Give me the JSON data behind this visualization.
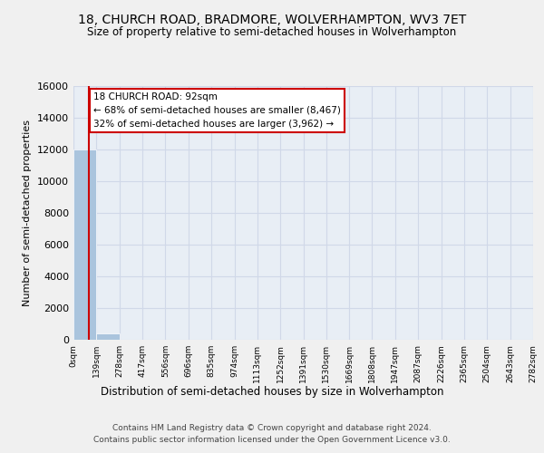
{
  "title_line1": "18, CHURCH ROAD, BRADMORE, WOLVERHAMPTON, WV3 7ET",
  "title_line2": "Size of property relative to semi-detached houses in Wolverhampton",
  "xlabel": "Distribution of semi-detached houses by size in Wolverhampton",
  "ylabel": "Number of semi-detached properties",
  "bin_edges": [
    0,
    139,
    278,
    417,
    556,
    696,
    835,
    974,
    1113,
    1252,
    1391,
    1530,
    1669,
    1808,
    1947,
    2087,
    2226,
    2365,
    2504,
    2643,
    2782
  ],
  "bar_heights": [
    12000,
    420,
    8,
    3,
    2,
    1,
    1,
    1,
    1,
    0,
    0,
    1,
    0,
    0,
    0,
    0,
    0,
    0,
    0,
    2
  ],
  "bar_color": "#aac4dd",
  "bar_edge_color": "white",
  "property_size": 92,
  "annotation_title": "18 CHURCH ROAD: 92sqm",
  "annotation_line1": "← 68% of semi-detached houses are smaller (8,467)",
  "annotation_line2": "32% of semi-detached houses are larger (3,962) →",
  "annotation_box_color": "#ffffff",
  "annotation_box_edge_color": "#cc0000",
  "property_line_color": "#cc0000",
  "ylim": [
    0,
    16000
  ],
  "yticks": [
    0,
    2000,
    4000,
    6000,
    8000,
    10000,
    12000,
    14000,
    16000
  ],
  "grid_color": "#d0d8e8",
  "background_color": "#e8eef5",
  "fig_background": "#f0f0f0",
  "footer_line1": "Contains HM Land Registry data © Crown copyright and database right 2024.",
  "footer_line2": "Contains public sector information licensed under the Open Government Licence v3.0."
}
